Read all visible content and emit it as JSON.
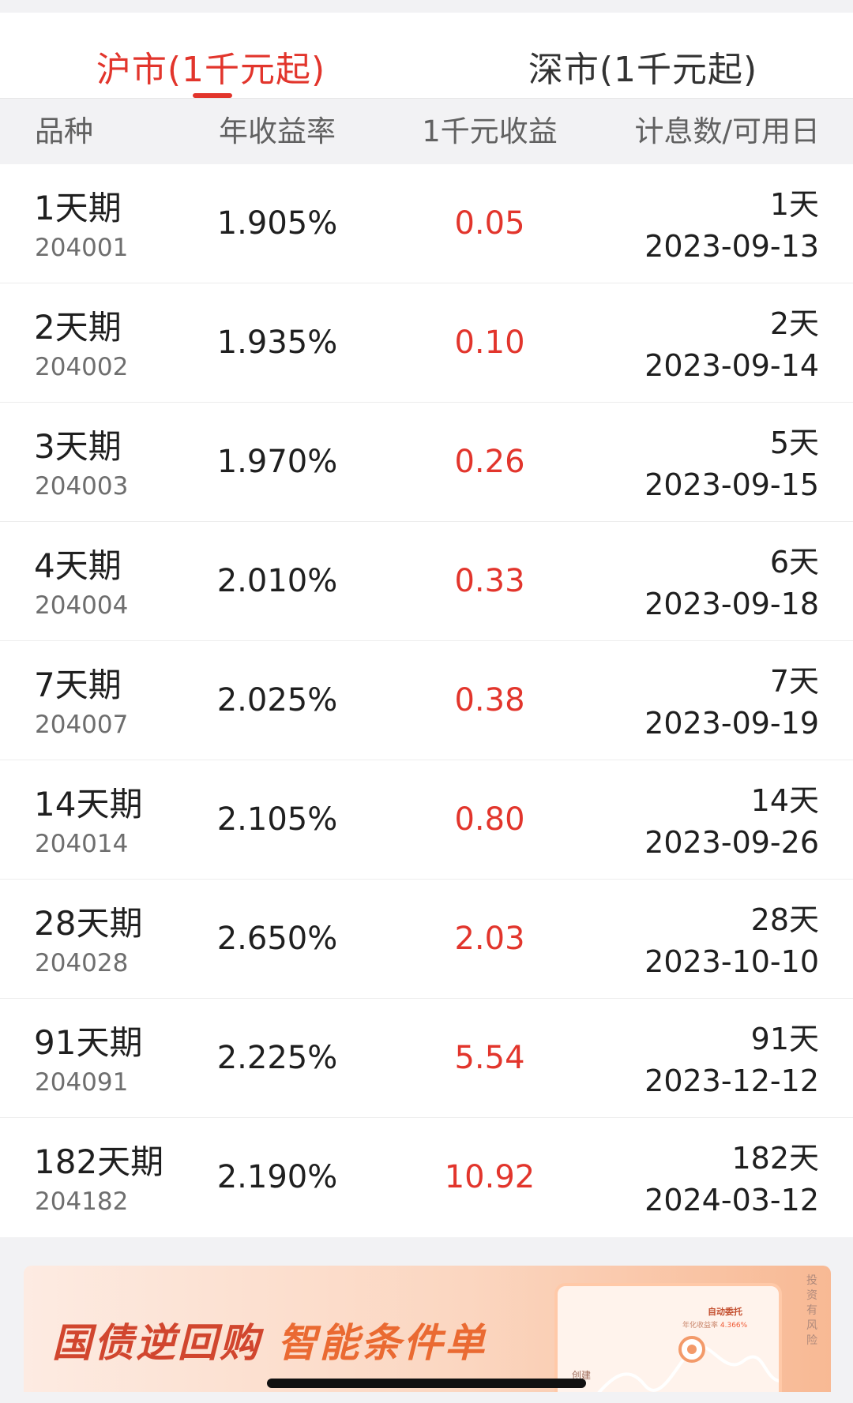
{
  "tabs": {
    "shanghai": "沪市(1千元起)",
    "shenzhen": "深市(1千元起)"
  },
  "header": {
    "variety": "品种",
    "rate": "年收益率",
    "income": "1千元收益",
    "days": "计息数/可用日"
  },
  "rows": [
    {
      "period": "1天期",
      "code": "204001",
      "rate": "1.905%",
      "income": "0.05",
      "days": "1天",
      "date": "2023-09-13"
    },
    {
      "period": "2天期",
      "code": "204002",
      "rate": "1.935%",
      "income": "0.10",
      "days": "2天",
      "date": "2023-09-14"
    },
    {
      "period": "3天期",
      "code": "204003",
      "rate": "1.970%",
      "income": "0.26",
      "days": "5天",
      "date": "2023-09-15"
    },
    {
      "period": "4天期",
      "code": "204004",
      "rate": "2.010%",
      "income": "0.33",
      "days": "6天",
      "date": "2023-09-18"
    },
    {
      "period": "7天期",
      "code": "204007",
      "rate": "2.025%",
      "income": "0.38",
      "days": "7天",
      "date": "2023-09-19"
    },
    {
      "period": "14天期",
      "code": "204014",
      "rate": "2.105%",
      "income": "0.80",
      "days": "14天",
      "date": "2023-09-26"
    },
    {
      "period": "28天期",
      "code": "204028",
      "rate": "2.650%",
      "income": "2.03",
      "days": "28天",
      "date": "2023-10-10"
    },
    {
      "period": "91天期",
      "code": "204091",
      "rate": "2.225%",
      "income": "5.54",
      "days": "91天",
      "date": "2023-12-12"
    },
    {
      "period": "182天期",
      "code": "204182",
      "rate": "2.190%",
      "income": "10.92",
      "days": "182天",
      "date": "2024-03-12"
    }
  ],
  "banner": {
    "title_part1": "国债逆回购",
    "title_part2": "智能条件单",
    "card_title": "自动委托",
    "card_subtitle": "年化收益率",
    "card_rate": "4.366%",
    "card_create": "创建",
    "side_text": "投资有风险"
  },
  "colors": {
    "accent_red": "#e2352c",
    "text_primary": "#1f1f1f",
    "text_secondary": "#6e6e6e",
    "header_bg": "#f2f2f4"
  }
}
